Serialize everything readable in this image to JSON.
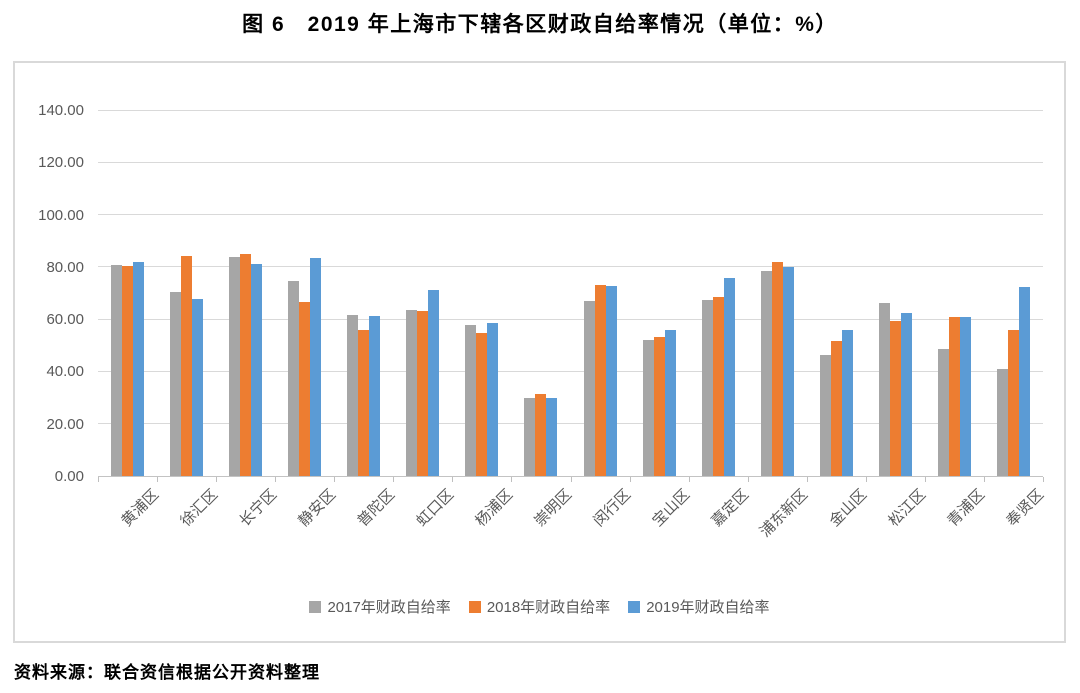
{
  "title": "图 6　2019 年上海市下辖各区财政自给率情况（单位：%）",
  "source_note": "资料来源：联合资信根据公开资料整理",
  "colors": {
    "series_2017": "#A6A6A6",
    "series_2018": "#ED7D31",
    "series_2019": "#5B9BD5",
    "gridline": "#D9D9D9",
    "axis_text": "#595959",
    "chart_border": "#D9D9D9"
  },
  "chart_data": {
    "type": "bar",
    "title": "图 6　2019 年上海市下辖各区财政自给率情况（单位：%）",
    "categories": [
      "黄浦区",
      "徐汇区",
      "长宁区",
      "静安区",
      "普陀区",
      "虹口区",
      "杨浦区",
      "崇明区",
      "闵行区",
      "宝山区",
      "嘉定区",
      "浦东新区",
      "金山区",
      "松江区",
      "青浦区",
      "奉贤区"
    ],
    "series": [
      {
        "name": "2017年财政自给率",
        "color": "#A6A6A6",
        "values": [
          80.8,
          70.4,
          83.9,
          74.6,
          61.7,
          63.4,
          57.8,
          29.8,
          67.0,
          51.9,
          67.5,
          78.6,
          46.2,
          66.3,
          48.7,
          41.0
        ]
      },
      {
        "name": "2018年财政自给率",
        "color": "#ED7D31",
        "values": [
          80.5,
          84.0,
          85.0,
          66.6,
          55.7,
          63.1,
          54.6,
          31.3,
          72.9,
          53.2,
          68.5,
          82.0,
          51.6,
          59.4,
          60.9,
          55.7
        ]
      },
      {
        "name": "2019年财政自给率",
        "color": "#5B9BD5",
        "values": [
          81.9,
          67.6,
          81.2,
          83.4,
          61.3,
          71.1,
          58.7,
          29.8,
          72.6,
          55.7,
          75.8,
          80.1,
          55.9,
          62.2,
          60.9,
          72.3
        ]
      }
    ],
    "xlabel": "",
    "ylabel": "",
    "ylim": [
      0,
      140
    ],
    "ytick_step": 20,
    "ytick_labels": [
      "0.00",
      "20.00",
      "40.00",
      "60.00",
      "80.00",
      "100.00",
      "120.00",
      "140.00"
    ],
    "grid": true,
    "legend_position": "bottom"
  }
}
